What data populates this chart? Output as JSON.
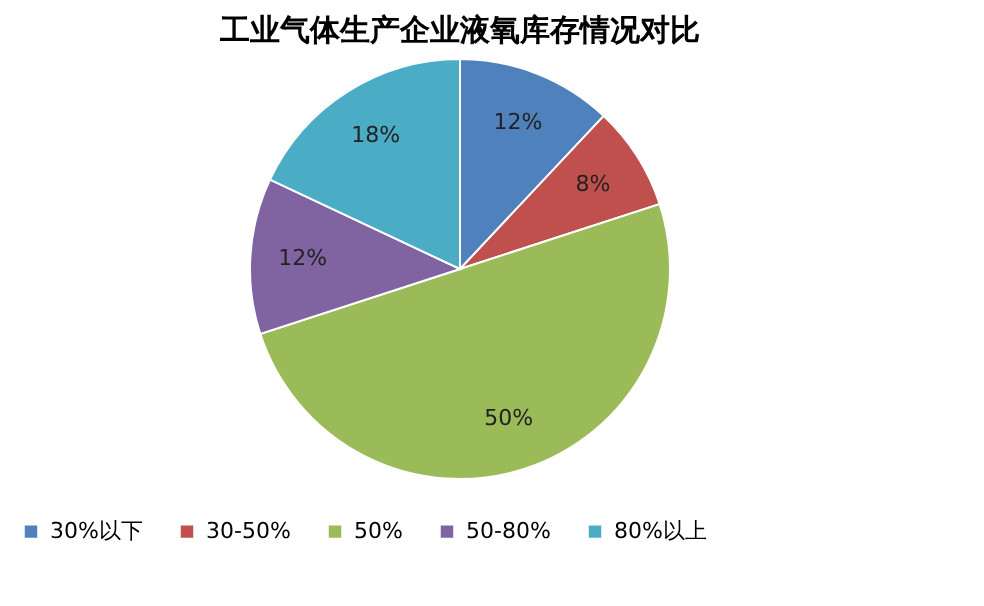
{
  "chart_data": {
    "type": "pie",
    "title": "工业气体生产企业液氧库存情况对比",
    "categories": [
      "30%以下",
      "30-50%",
      "50%",
      "50-80%",
      "80%以上"
    ],
    "values": [
      12,
      8,
      50,
      12,
      18
    ],
    "colors": [
      "#4f81bd",
      "#c0504d",
      "#9bbb59",
      "#8064a2",
      "#4bacc6"
    ],
    "value_labels": [
      "12%",
      "8%",
      "50%",
      "12%",
      "18%"
    ],
    "legend": "bottom"
  }
}
